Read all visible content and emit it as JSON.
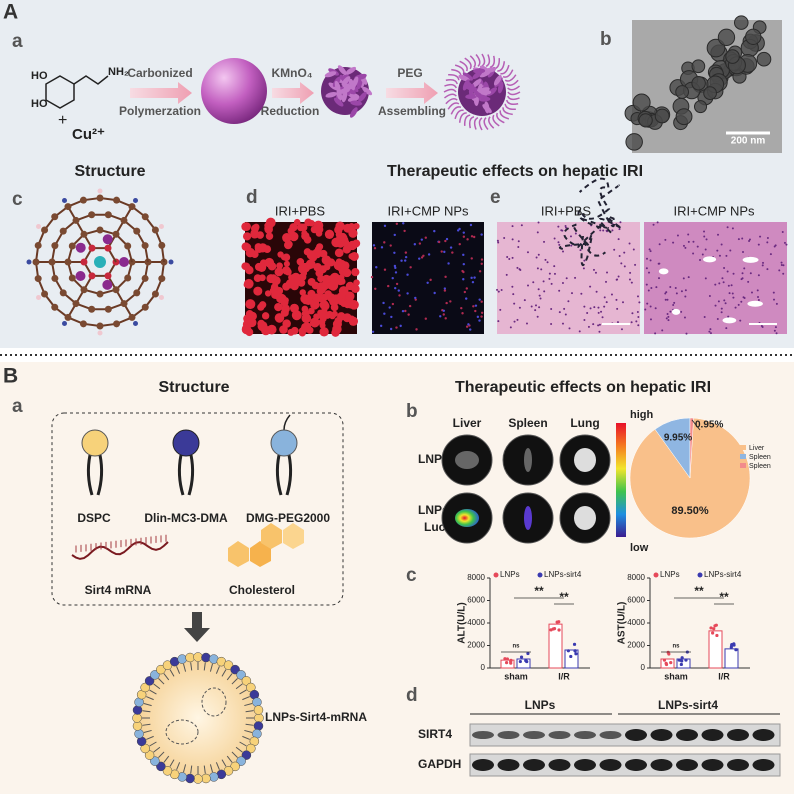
{
  "panel_A": {
    "label": "A",
    "a": {
      "label": "a",
      "substituents": [
        "HO",
        "HO",
        "NH₂"
      ],
      "plus": "+",
      "ion": "Cu²⁺",
      "steps": [
        {
          "top": "Carbonized",
          "bottom": "Polymerzation"
        },
        {
          "top": "KMnO₄",
          "bottom": "Reduction"
        },
        {
          "top": "PEG",
          "bottom": "Assembling"
        }
      ]
    },
    "b": {
      "label": "b",
      "scale_bar": "200 nm"
    },
    "structure_title": "Structure",
    "effects_title": "Therapeutic effects on hepatic IRI",
    "c": {
      "label": "c"
    },
    "d": {
      "label": "d",
      "groups": [
        "IRI+PBS",
        "IRI+CMP NPs"
      ]
    },
    "e": {
      "label": "e",
      "groups": [
        "IRI+PBS",
        "IRI+CMP NPs"
      ]
    }
  },
  "panel_B": {
    "label": "B",
    "structure_title": "Structure",
    "effects_title": "Therapeutic effects on hepatic IRI",
    "a": {
      "label": "a",
      "components": [
        "DSPC",
        "Dlin-MC3-DMA",
        "DMG-PEG2000",
        "Sirt4 mRNA",
        "Cholesterol"
      ],
      "particle": "LNPs-Sirt4-mRNA"
    },
    "b": {
      "label": "b",
      "organs": [
        "Liver",
        "Spleen",
        "Lung"
      ],
      "rows": [
        "LNPs",
        [
          "LNPs-",
          "Luc"
        ]
      ],
      "colorbar": {
        "high": "high",
        "low": "low"
      },
      "pie": {
        "type": "pie",
        "categories": [
          "Liver",
          "Spleen",
          "Spleen"
        ],
        "values": [
          89.5,
          9.95,
          0.95
        ],
        "value_labels": [
          "89.50%",
          "9.95%",
          "0.95%"
        ],
        "colors": [
          "#f9c08a",
          "#8fb6e2",
          "#f28b8b"
        ]
      }
    },
    "c": {
      "label": "c",
      "charts": [
        {
          "type": "bar",
          "ylabel": "ALT(U/L)",
          "categories": [
            "sham",
            "I/R"
          ],
          "series": [
            {
              "name": "LNPs",
              "color": "#e6495a",
              "values": [
                700,
                3900
              ]
            },
            {
              "name": "LNPs-sirt4",
              "color": "#3a3ab0",
              "values": [
                800,
                1600
              ]
            }
          ],
          "ylim": [
            0,
            8000
          ],
          "yticks": [
            0,
            2000,
            4000,
            6000,
            8000
          ],
          "annotations": [
            "ns",
            "**",
            "**"
          ]
        },
        {
          "type": "bar",
          "ylabel": "AST(U/L)",
          "categories": [
            "sham",
            "I/R"
          ],
          "series": [
            {
              "name": "LNPs",
              "color": "#e6495a",
              "values": [
                800,
                3300
              ]
            },
            {
              "name": "LNPs-sirt4",
              "color": "#3a3ab0",
              "values": [
                800,
                1700
              ]
            }
          ],
          "ylim": [
            0,
            8000
          ],
          "yticks": [
            0,
            2000,
            4000,
            6000,
            8000
          ],
          "annotations": [
            "ns",
            "**",
            "**"
          ]
        }
      ]
    },
    "d": {
      "label": "d",
      "groups": [
        "LNPs",
        "LNPs-sirt4"
      ],
      "rows": [
        "SIRT4",
        "GAPDH"
      ]
    }
  }
}
